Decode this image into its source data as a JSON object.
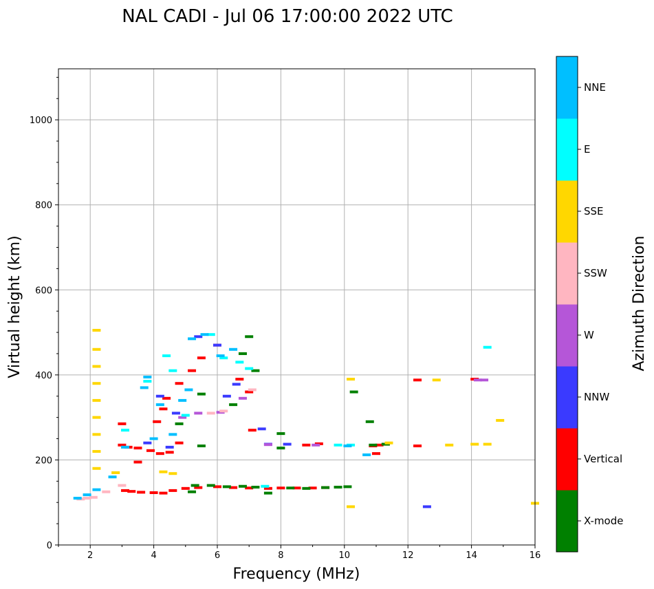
{
  "chart_data": {
    "type": "scatter",
    "title": "NAL CADI - Jul 06 17:00:00 2022 UTC",
    "xlabel": "Frequency (MHz)",
    "ylabel": "Virtual height (km)",
    "xlim": [
      1,
      16
    ],
    "ylim": [
      0,
      1120
    ],
    "xticks": [
      2,
      4,
      6,
      8,
      10,
      12,
      14,
      16
    ],
    "yticks": [
      0,
      200,
      400,
      600,
      800,
      1000
    ],
    "grid": true,
    "colorbar": {
      "title": "Azimuth Direction",
      "categories": [
        {
          "name": "X-mode",
          "color": "#008000"
        },
        {
          "name": "Vertical",
          "color": "#ff0000"
        },
        {
          "name": "NNW",
          "color": "#3a3aff"
        },
        {
          "name": "W",
          "color": "#b556d8"
        },
        {
          "name": "SSW",
          "color": "#ffb6c1"
        },
        {
          "name": "SSE",
          "color": "#ffd700"
        },
        {
          "name": "E",
          "color": "#00ffff"
        },
        {
          "name": "NNE",
          "color": "#00bfff"
        }
      ]
    },
    "series": [
      {
        "name": "Vertical",
        "points": [
          [
            3.1,
            128
          ],
          [
            3.3,
            126
          ],
          [
            3.6,
            124
          ],
          [
            4.0,
            123
          ],
          [
            4.3,
            122
          ],
          [
            4.6,
            128
          ],
          [
            5.0,
            133
          ],
          [
            5.4,
            135
          ],
          [
            6.0,
            137
          ],
          [
            6.5,
            135
          ],
          [
            7.0,
            134
          ],
          [
            7.6,
            133
          ],
          [
            8.0,
            134
          ],
          [
            8.5,
            134
          ],
          [
            9.0,
            134
          ],
          [
            9.4,
            135
          ],
          [
            3.0,
            235
          ],
          [
            3.2,
            230
          ],
          [
            3.5,
            228
          ],
          [
            3.9,
            222
          ],
          [
            4.2,
            215
          ],
          [
            4.5,
            218
          ],
          [
            4.8,
            240
          ],
          [
            4.1,
            290
          ],
          [
            4.3,
            320
          ],
          [
            4.4,
            345
          ],
          [
            4.8,
            380
          ],
          [
            5.2,
            410
          ],
          [
            5.5,
            440
          ],
          [
            6.0,
            470
          ],
          [
            6.7,
            390
          ],
          [
            7.0,
            360
          ],
          [
            7.1,
            270
          ],
          [
            8.8,
            235
          ],
          [
            9.2,
            238
          ],
          [
            10.9,
            233
          ],
          [
            11.1,
            235
          ],
          [
            11.3,
            237
          ],
          [
            11.0,
            215
          ],
          [
            12.3,
            388
          ],
          [
            12.3,
            233
          ],
          [
            14.1,
            390
          ],
          [
            3.0,
            285
          ],
          [
            3.5,
            195
          ]
        ]
      },
      {
        "name": "X-mode",
        "points": [
          [
            5.3,
            140
          ],
          [
            5.8,
            140
          ],
          [
            6.3,
            137
          ],
          [
            6.8,
            138
          ],
          [
            7.2,
            136
          ],
          [
            8.3,
            134
          ],
          [
            8.8,
            133
          ],
          [
            9.4,
            135
          ],
          [
            9.8,
            136
          ],
          [
            10.1,
            137
          ],
          [
            10.8,
            290
          ],
          [
            10.3,
            360
          ],
          [
            8.0,
            228
          ],
          [
            8.0,
            262
          ],
          [
            10.9,
            235
          ],
          [
            11.3,
            237
          ],
          [
            5.5,
            233
          ],
          [
            5.5,
            355
          ],
          [
            6.8,
            450
          ],
          [
            7.0,
            490
          ],
          [
            4.8,
            285
          ],
          [
            6.5,
            330
          ],
          [
            7.2,
            410
          ],
          [
            5.2,
            125
          ],
          [
            7.6,
            122
          ]
        ]
      },
      {
        "name": "NNW",
        "points": [
          [
            5.4,
            490
          ],
          [
            6.0,
            470
          ],
          [
            6.6,
            378
          ],
          [
            6.3,
            350
          ],
          [
            4.7,
            310
          ],
          [
            4.2,
            350
          ],
          [
            12.6,
            90
          ],
          [
            7.4,
            273
          ],
          [
            8.2,
            237
          ],
          [
            7.6,
            237
          ],
          [
            3.8,
            240
          ],
          [
            4.5,
            230
          ]
        ]
      },
      {
        "name": "W",
        "points": [
          [
            4.9,
            300
          ],
          [
            5.4,
            310
          ],
          [
            6.1,
            312
          ],
          [
            6.8,
            345
          ],
          [
            7.6,
            236
          ],
          [
            9.1,
            235
          ],
          [
            14.4,
            388
          ],
          [
            14.2,
            388
          ]
        ]
      },
      {
        "name": "SSW",
        "points": [
          [
            5.8,
            310
          ],
          [
            6.2,
            315
          ],
          [
            1.7,
            108
          ],
          [
            1.9,
            110
          ],
          [
            2.1,
            112
          ],
          [
            2.5,
            125
          ],
          [
            3.0,
            140
          ],
          [
            7.1,
            365
          ]
        ]
      },
      {
        "name": "SSE",
        "points": [
          [
            2.2,
            505
          ],
          [
            2.2,
            460
          ],
          [
            2.2,
            420
          ],
          [
            2.2,
            380
          ],
          [
            2.2,
            340
          ],
          [
            2.2,
            300
          ],
          [
            2.2,
            260
          ],
          [
            2.2,
            220
          ],
          [
            2.2,
            180
          ],
          [
            2.8,
            170
          ],
          [
            4.3,
            172
          ],
          [
            4.6,
            168
          ],
          [
            10.2,
            390
          ],
          [
            10.2,
            90
          ],
          [
            12.9,
            388
          ],
          [
            13.3,
            235
          ],
          [
            14.1,
            237
          ],
          [
            14.5,
            237
          ],
          [
            14.9,
            293
          ],
          [
            11.4,
            240
          ],
          [
            16.0,
            98
          ]
        ]
      },
      {
        "name": "E",
        "points": [
          [
            5.8,
            495
          ],
          [
            6.2,
            440
          ],
          [
            6.7,
            430
          ],
          [
            7.0,
            415
          ],
          [
            4.4,
            445
          ],
          [
            4.6,
            410
          ],
          [
            14.5,
            465
          ],
          [
            10.2,
            235
          ],
          [
            9.8,
            235
          ],
          [
            7.5,
            138
          ],
          [
            5.0,
            305
          ],
          [
            3.1,
            270
          ],
          [
            3.8,
            385
          ]
        ]
      },
      {
        "name": "NNE",
        "points": [
          [
            5.2,
            485
          ],
          [
            5.6,
            495
          ],
          [
            6.1,
            445
          ],
          [
            6.5,
            460
          ],
          [
            3.7,
            370
          ],
          [
            3.8,
            395
          ],
          [
            4.2,
            330
          ],
          [
            4.6,
            260
          ],
          [
            4.9,
            340
          ],
          [
            5.1,
            365
          ],
          [
            10.1,
            233
          ],
          [
            10.7,
            212
          ],
          [
            3.1,
            230
          ],
          [
            1.6,
            110
          ],
          [
            1.9,
            118
          ],
          [
            2.2,
            130
          ],
          [
            2.7,
            160
          ],
          [
            4.0,
            250
          ]
        ]
      }
    ]
  }
}
